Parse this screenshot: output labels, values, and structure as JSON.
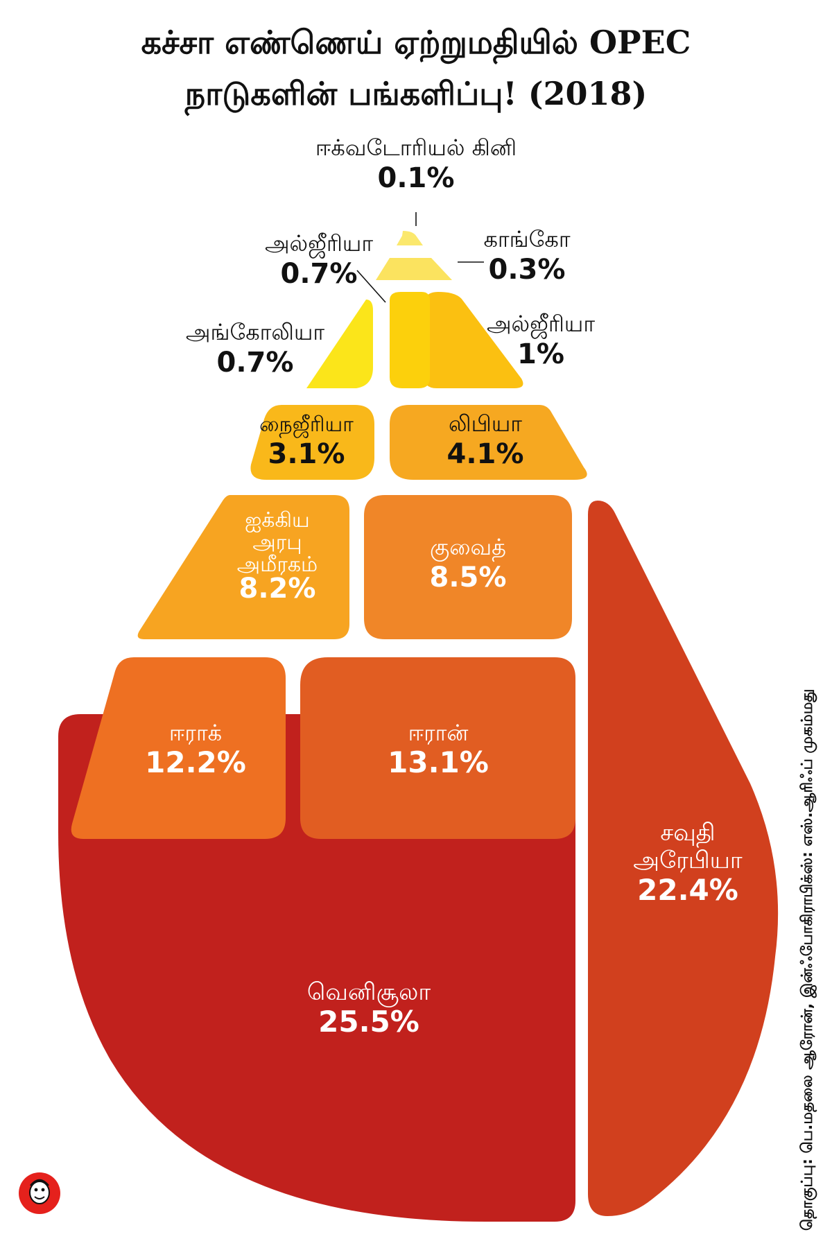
{
  "title_lines": [
    "கச்சா எண்ணெய் ஏற்றுமதியில் OPEC",
    "நாடுகளின் பங்களிப்பு! (2018)"
  ],
  "credit": "தொகுப்பு: பெ.மதலை ஆரோன், இன்ஃபோகிராபிக்ஸ்: எஸ்.ஆரிஃப் முகம்மது",
  "chart_data": {
    "type": "treemap",
    "unit": "%",
    "series": [
      {
        "name": "வெனிசூலா",
        "value": 25.5,
        "label_lines": [
          "வெனிசூலா"
        ],
        "display": "25.5%",
        "color": "#c1211d"
      },
      {
        "name": "சவுதி அரேபியா",
        "value": 22.4,
        "label_lines": [
          "சவுதி",
          "அரேபியா"
        ],
        "display": "22.4%",
        "color": "#d1401e"
      },
      {
        "name": "ஈரான்",
        "value": 13.1,
        "label_lines": [
          "ஈரான்"
        ],
        "display": "13.1%",
        "color": "#e15d22"
      },
      {
        "name": "ஈராக்",
        "value": 12.2,
        "label_lines": [
          "ஈராக்"
        ],
        "display": "12.2%",
        "color": "#ee7022"
      },
      {
        "name": "குவைத்",
        "value": 8.5,
        "label_lines": [
          "குவைத்"
        ],
        "display": "8.5%",
        "color": "#f08628"
      },
      {
        "name": "ஐக்கிய அரபு அமீரகம்",
        "value": 8.2,
        "label_lines": [
          "ஐக்கிய",
          "அரபு",
          "அமீரகம்"
        ],
        "display": "8.2%",
        "color": "#f7a421"
      },
      {
        "name": "லிபியா",
        "value": 4.1,
        "label_lines": [
          "லிபியா"
        ],
        "display": "4.1%",
        "color": "#f6a821"
      },
      {
        "name": "நைஜீரியா",
        "value": 3.1,
        "label_lines": [
          "நைஜீரியா"
        ],
        "display": "3.1%",
        "color": "#f9b81a"
      },
      {
        "name": "அல்ஜீரியா",
        "value": 1,
        "label_lines": [
          "அல்ஜீரியா"
        ],
        "display": "1%",
        "color": "#fbc011"
      },
      {
        "name": "அங்கோலியா",
        "value": 0.7,
        "label_lines": [
          "அங்கோலியா"
        ],
        "display": "0.7%",
        "color": "#fbe51a"
      },
      {
        "name": "அல்ஜீரியா",
        "value": 0.7,
        "label_lines": [
          "அல்ஜீரியா"
        ],
        "display": "0.7%",
        "color": "#fcd00c"
      },
      {
        "name": "காங்கோ",
        "value": 0.3,
        "label_lines": [
          "காங்கோ"
        ],
        "display": "0.3%",
        "color": "#fbe35f"
      },
      {
        "name": "ஈக்வடோரியல் கினி",
        "value": 0.1,
        "label_lines": [
          "ஈக்வடோரியல் கினி"
        ],
        "display": "0.1%",
        "color": "#fbe86d"
      }
    ]
  }
}
